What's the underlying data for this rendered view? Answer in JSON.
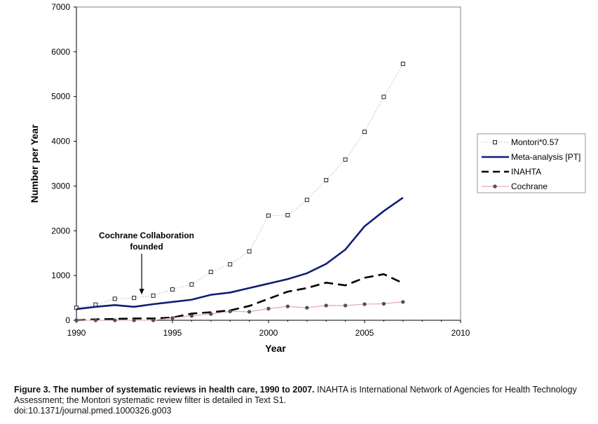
{
  "chart_data": {
    "type": "line",
    "xlabel": "Year",
    "ylabel": "Number per Year",
    "xlim": [
      1990,
      2010
    ],
    "ylim": [
      0,
      7000
    ],
    "xticks": [
      1990,
      1995,
      2000,
      2005,
      2010
    ],
    "yticks": [
      0,
      1000,
      2000,
      3000,
      4000,
      5000,
      6000,
      7000
    ],
    "grid": false,
    "legend_position": "right",
    "x": [
      1990,
      1991,
      1992,
      1993,
      1994,
      1995,
      1996,
      1997,
      1998,
      1999,
      2000,
      2001,
      2002,
      2003,
      2004,
      2005,
      2006,
      2007
    ],
    "series": [
      {
        "name": "Montori*0.57",
        "style": "dotted-square",
        "color": "#b0b0b0",
        "values": [
          280,
          350,
          480,
          500,
          550,
          690,
          800,
          1080,
          1250,
          1540,
          2340,
          2350,
          2690,
          3130,
          3590,
          4210,
          4990,
          5730
        ]
      },
      {
        "name": "Meta-analysis [PT]",
        "style": "solid",
        "color": "#0d1f74",
        "values": [
          250,
          300,
          340,
          300,
          360,
          410,
          460,
          570,
          620,
          720,
          820,
          920,
          1050,
          1260,
          1580,
          2100,
          2440,
          2740
        ]
      },
      {
        "name": "INAHTA",
        "style": "dashed",
        "color": "#000000",
        "values": [
          0,
          20,
          30,
          40,
          40,
          60,
          150,
          180,
          220,
          320,
          480,
          640,
          720,
          840,
          780,
          950,
          1030,
          830
        ]
      },
      {
        "name": "Cochrane",
        "style": "dot-marker",
        "color": "#e7a9c8",
        "values": [
          0,
          0,
          0,
          0,
          0,
          50,
          100,
          140,
          200,
          190,
          260,
          310,
          280,
          330,
          330,
          360,
          370,
          410
        ]
      }
    ],
    "annotation": {
      "line1": "Cochrane Collaboration",
      "line2": "founded",
      "x": 1993.4,
      "arrow_to_y": 60
    }
  },
  "caption": {
    "lead": "Figure 3. The number of systematic reviews in health care, 1990 to 2007.",
    "text": " INAHTA is International Network of Agencies for Health Technology Assessment; the Montori systematic review filter is detailed in Text S1.",
    "doi": "doi:10.1371/journal.pmed.1000326.g003"
  }
}
